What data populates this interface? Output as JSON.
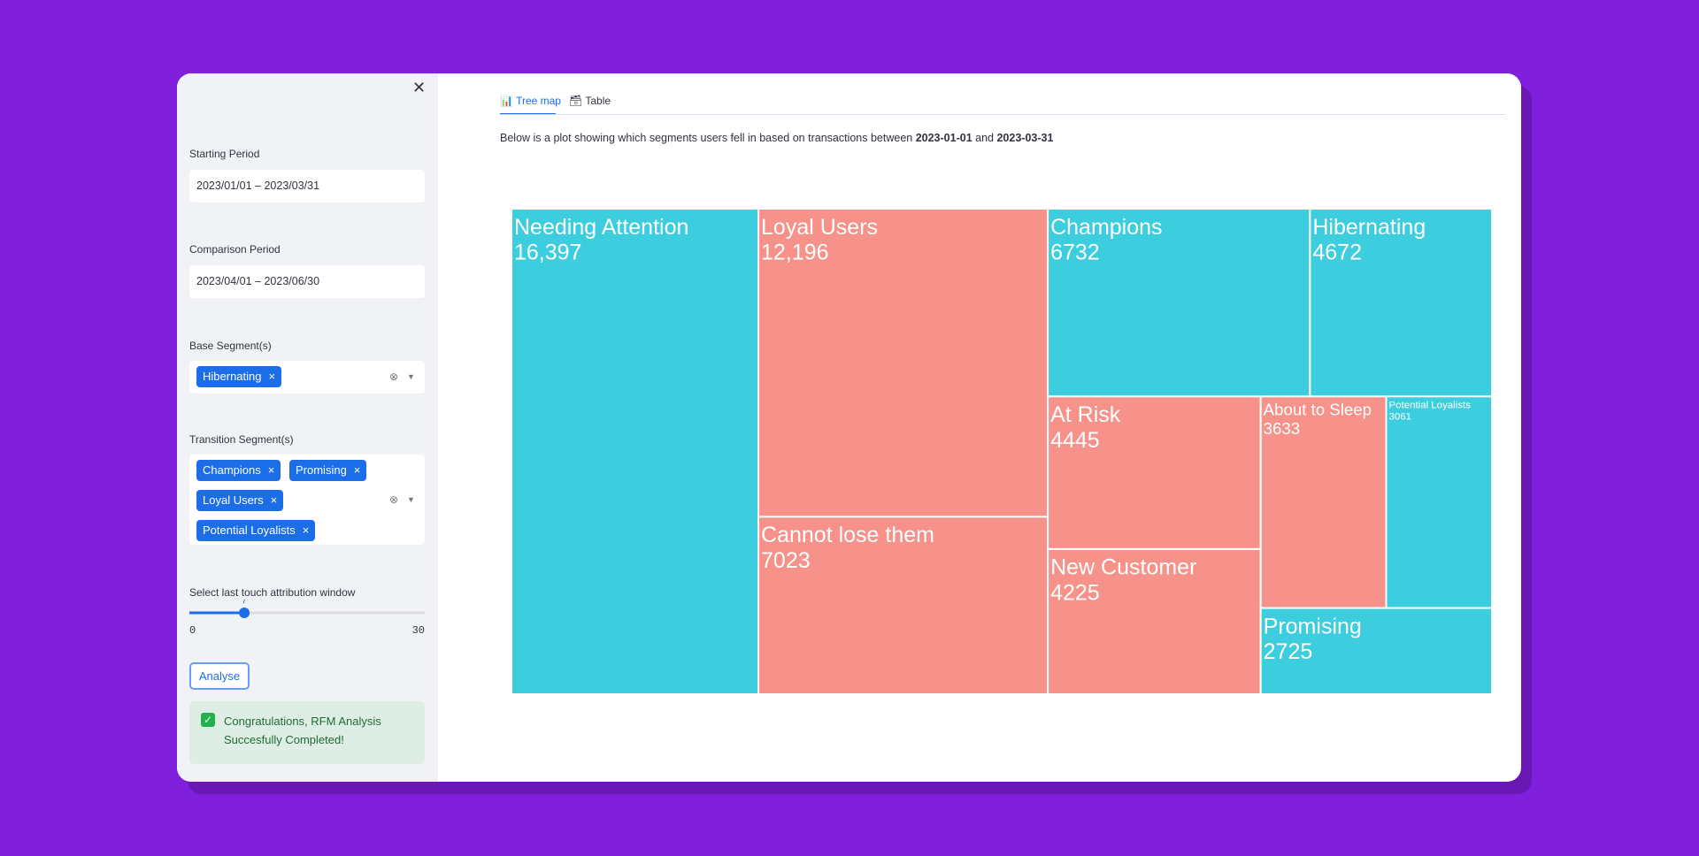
{
  "sidebar": {
    "starting_period": {
      "label": "Starting Period",
      "value": "2023/01/01 – 2023/03/31"
    },
    "comparison_period": {
      "label": "Comparison Period",
      "value": "2023/04/01 – 2023/06/30"
    },
    "base_segments": {
      "label": "Base Segment(s)",
      "tags": [
        "Hibernating"
      ]
    },
    "transition_segments": {
      "label": "Transition Segment(s)",
      "tags": [
        "Champions",
        "Promising",
        "Loyal Users",
        "Potential Loyalists"
      ]
    },
    "slider": {
      "label": "Select last touch attribution window",
      "value": 7,
      "min": 0,
      "max": 30
    },
    "button": "Analyse",
    "success": "Congratulations, RFM Analysis Succesfully Completed!"
  },
  "tabs": [
    "Tree map",
    "Table"
  ],
  "description": {
    "before": "Below is a plot showing which segments users fell in based on transactions between ",
    "start": "2023-01-01",
    "middle": " and ",
    "end": "2023-03-31"
  },
  "chart_data": {
    "type": "treemap",
    "categories": [
      "Needing Attention",
      "Loyal Users",
      "Cannot lose them",
      "Champions",
      "Hibernating",
      "At Risk",
      "New Customer",
      "About to Sleep",
      "Potential Loyalists",
      "Promising"
    ],
    "values": [
      16397,
      12196,
      7023,
      6732,
      4672,
      4445,
      4225,
      3633,
      3061,
      2725
    ],
    "value_labels": [
      "16,397",
      "12,196",
      "7023",
      "6732",
      "4672",
      "4445",
      "4225",
      "3633",
      "3061",
      "2725"
    ],
    "colors": [
      "#3ccdde",
      "#f6928a",
      "#f6928a",
      "#3ccdde",
      "#3ccdde",
      "#f6928a",
      "#f6928a",
      "#f6928a",
      "#3ccdde",
      "#3ccdde"
    ]
  }
}
